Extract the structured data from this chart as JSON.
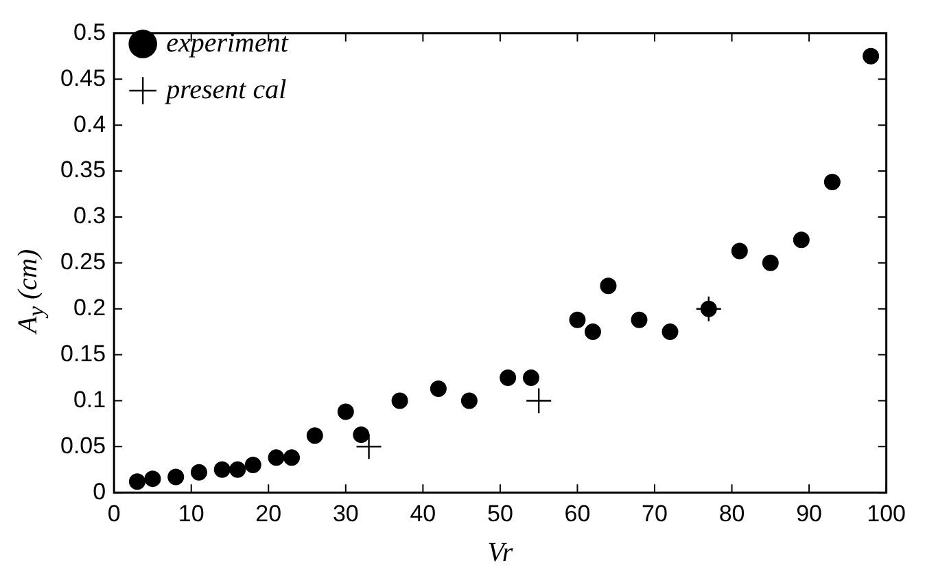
{
  "chart_data": {
    "type": "scatter",
    "xlabel": "Vr",
    "ylabel": "A$_{y}$ (cm)",
    "xlim": [
      0,
      100
    ],
    "xticks": [
      0,
      10,
      20,
      30,
      40,
      50,
      60,
      70,
      80,
      90,
      100
    ],
    "ylim": [
      0,
      0.5
    ],
    "yticks": [
      0,
      0.05,
      0.1,
      0.15,
      0.2,
      0.25,
      0.3,
      0.35,
      0.4,
      0.45,
      0.5
    ],
    "grid": false,
    "legend": "top left",
    "series": [
      {
        "name": "experiment",
        "color": "#000000",
        "marker": "circle",
        "x": [
          3,
          5,
          8,
          11,
          14,
          16,
          18,
          21,
          23,
          26,
          30,
          32,
          37,
          42,
          46,
          51,
          54,
          60,
          62,
          64,
          68,
          72,
          77,
          81,
          85,
          89,
          93,
          98
        ],
        "values": [
          0.012,
          0.015,
          0.017,
          0.022,
          0.025,
          0.025,
          0.03,
          0.038,
          0.038,
          0.062,
          0.088,
          0.063,
          0.1,
          0.113,
          0.1,
          0.125,
          0.125,
          0.188,
          0.175,
          0.225,
          0.188,
          0.175,
          0.2,
          0.263,
          0.25,
          0.275,
          0.338,
          0.475
        ]
      },
      {
        "name": "present cal",
        "color": "#000000",
        "marker": "cross",
        "x": [
          33,
          55,
          77
        ],
        "values": [
          0.05,
          0.1,
          0.2
        ]
      }
    ]
  }
}
